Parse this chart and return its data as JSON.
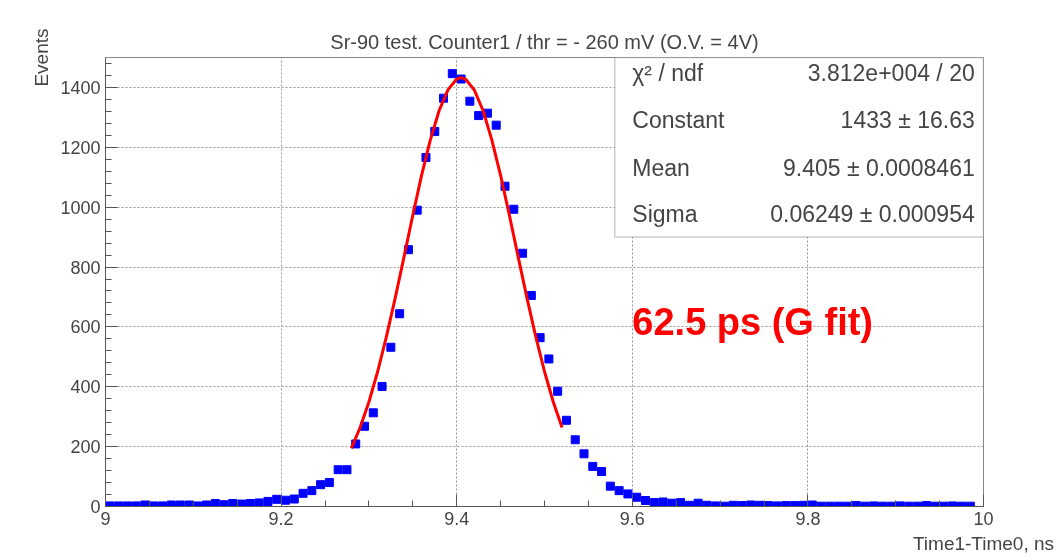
{
  "chart_data": {
    "type": "scatter",
    "title": "Sr-90 test. Counter1 / thr = - 260 mV (O.V. = 4V)",
    "xlabel": "Time1-Time0, ns",
    "ylabel": "Events",
    "xlim": [
      9,
      10
    ],
    "ylim": [
      0,
      1500
    ],
    "xticks": [
      9,
      9.2,
      9.4,
      9.6,
      9.8,
      10
    ],
    "yticks": [
      0,
      200,
      400,
      600,
      800,
      1000,
      1200,
      1400
    ],
    "grid": true,
    "series": [
      {
        "marker": "square",
        "color": "#0000ff",
        "x": [
          9.005,
          9.015,
          9.025,
          9.035,
          9.045,
          9.055,
          9.065,
          9.075,
          9.085,
          9.095,
          9.105,
          9.115,
          9.125,
          9.135,
          9.145,
          9.155,
          9.165,
          9.175,
          9.185,
          9.195,
          9.205,
          9.215,
          9.225,
          9.235,
          9.245,
          9.255,
          9.265,
          9.275,
          9.285,
          9.295,
          9.305,
          9.315,
          9.325,
          9.335,
          9.345,
          9.355,
          9.365,
          9.375,
          9.385,
          9.395,
          9.405,
          9.415,
          9.425,
          9.435,
          9.445,
          9.455,
          9.465,
          9.475,
          9.485,
          9.495,
          9.505,
          9.515,
          9.525,
          9.535,
          9.545,
          9.555,
          9.565,
          9.575,
          9.585,
          9.595,
          9.605,
          9.615,
          9.625,
          9.635,
          9.645,
          9.655,
          9.665,
          9.675,
          9.685,
          9.695,
          9.705,
          9.715,
          9.725,
          9.735,
          9.745,
          9.755,
          9.765,
          9.775,
          9.785,
          9.795,
          9.805,
          9.815,
          9.825,
          9.835,
          9.845,
          9.855,
          9.865,
          9.875,
          9.885,
          9.895,
          9.905,
          9.915,
          9.925,
          9.935,
          9.945,
          9.955,
          9.965,
          9.975,
          9.985
        ],
        "values": [
          2,
          2,
          2,
          2,
          5,
          2,
          2,
          5,
          5,
          5,
          2,
          5,
          10,
          6,
          10,
          8,
          10,
          12,
          17,
          24,
          21,
          25,
          44,
          53,
          73,
          80,
          123,
          123,
          209,
          268,
          313,
          401,
          532,
          644,
          858,
          990,
          1166,
          1253,
          1364,
          1446,
          1428,
          1354,
          1306,
          1314,
          1274,
          1070,
          993,
          846,
          705,
          564,
          493,
          385,
          288,
          223,
          176,
          134,
          117,
          68,
          53,
          42,
          31,
          20,
          13,
          15,
          11,
          13,
          4,
          11,
          4,
          2,
          1,
          4,
          3,
          5,
          4,
          3,
          2,
          3,
          3,
          4,
          5,
          1,
          1,
          1,
          1,
          3,
          1,
          2,
          1,
          1,
          2,
          1,
          1,
          3,
          1,
          1,
          2,
          1,
          1
        ]
      },
      {
        "type": "line",
        "marker": "none",
        "color": "#ff0000",
        "x": [
          9.28,
          9.29,
          9.3,
          9.31,
          9.32,
          9.33,
          9.34,
          9.35,
          9.36,
          9.37,
          9.38,
          9.39,
          9.4,
          9.405,
          9.41,
          9.42,
          9.43,
          9.44,
          9.45,
          9.46,
          9.47,
          9.48,
          9.49,
          9.5,
          9.51,
          9.52
        ],
        "values": [
          194,
          264,
          349,
          451,
          568,
          697,
          834,
          973,
          1106,
          1225,
          1323,
          1392,
          1428,
          1433,
          1428,
          1392,
          1323,
          1225,
          1106,
          973,
          834,
          697,
          568,
          451,
          349,
          264
        ]
      }
    ],
    "annotations": [
      "χ² / ndf",
      "3.812e+004 / 20",
      "Constant",
      "1433 ± 16.63",
      "Mean",
      "9.405 ± 0.0008461",
      "Sigma",
      "0.06249 ± 0.000954",
      "62.5 ps (G fit)"
    ]
  }
}
